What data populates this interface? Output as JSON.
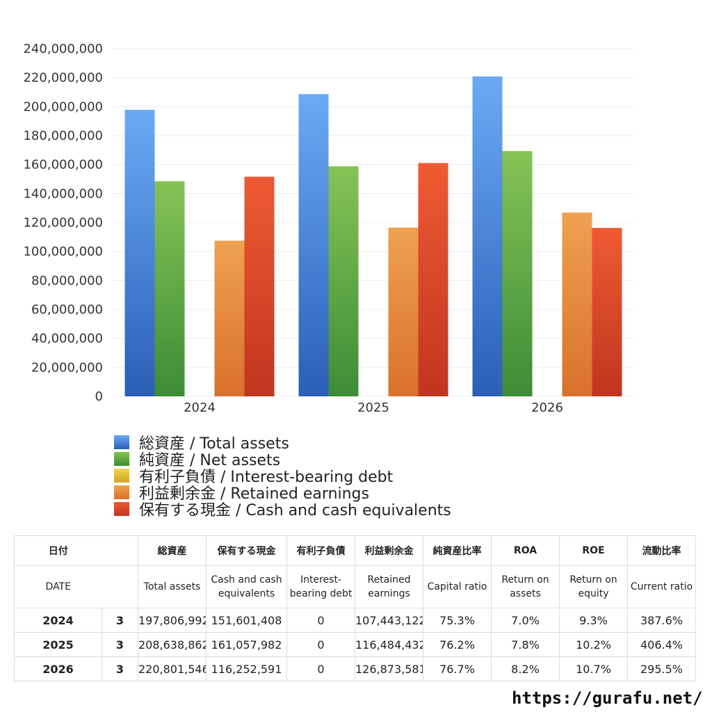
{
  "chart_data": {
    "type": "bar",
    "categories": [
      "2024",
      "2025",
      "2026"
    ],
    "series": [
      {
        "name": "総資産 / Total assets",
        "values": [
          197806992,
          208638862,
          220801546
        ],
        "color_top": "#6aaaf4",
        "color_bottom": "#2a5fb8"
      },
      {
        "name": "純資産 / Net assets",
        "values": [
          148500000,
          158800000,
          169300000
        ],
        "color_top": "#86c356",
        "color_bottom": "#3b8d35"
      },
      {
        "name": "有利子負債 / Interest-bearing debt",
        "values": [
          0,
          0,
          0
        ],
        "color_top": "#f2d54a",
        "color_bottom": "#d0a52a"
      },
      {
        "name": "利益剰余金 / Retained earnings",
        "values": [
          107443122,
          116484432,
          126873581
        ],
        "color_top": "#eea150",
        "color_bottom": "#d9712d"
      },
      {
        "name": "保有する現金 /  Cash and cash equivalents",
        "values": [
          151601408,
          161057982,
          116252591
        ],
        "color_top": "#ee5a33",
        "color_bottom": "#c1351f"
      }
    ],
    "ylim": [
      0,
      240000000
    ],
    "yticks": [
      "0",
      "20,000,000",
      "40,000,000",
      "60,000,000",
      "80,000,000",
      "100,000,000",
      "120,000,000",
      "140,000,000",
      "160,000,000",
      "180,000,000",
      "200,000,000",
      "220,000,000",
      "240,000,000"
    ],
    "grid": true,
    "legend_position": "bottom-left"
  },
  "table": {
    "header_jp": [
      "日付",
      "",
      "総資産",
      "保有する現金",
      "有利子負債",
      "利益剰余金",
      "純資産比率",
      "ROA",
      "ROE",
      "流動比率"
    ],
    "header_en": [
      "DATE",
      "",
      "Total assets",
      "Cash and cash equivalents",
      "Interest-bearing debt",
      "Retained earnings",
      "Capital ratio",
      "Return on assets",
      "Return on equity",
      "Current ratio"
    ],
    "rows": [
      [
        "2024",
        "3",
        "197,806,992",
        "151,601,408",
        "0",
        "107,443,122",
        "75.3%",
        "7.0%",
        "9.3%",
        "387.6%"
      ],
      [
        "2025",
        "3",
        "208,638,862",
        "161,057,982",
        "0",
        "116,484,432",
        "76.2%",
        "7.8%",
        "10.2%",
        "406.4%"
      ],
      [
        "2026",
        "3",
        "220,801,546",
        "116,252,591",
        "0",
        "126,873,581",
        "76.7%",
        "8.2%",
        "10.7%",
        "295.5%"
      ]
    ]
  },
  "footer": {
    "url": "https://gurafu.net/"
  }
}
